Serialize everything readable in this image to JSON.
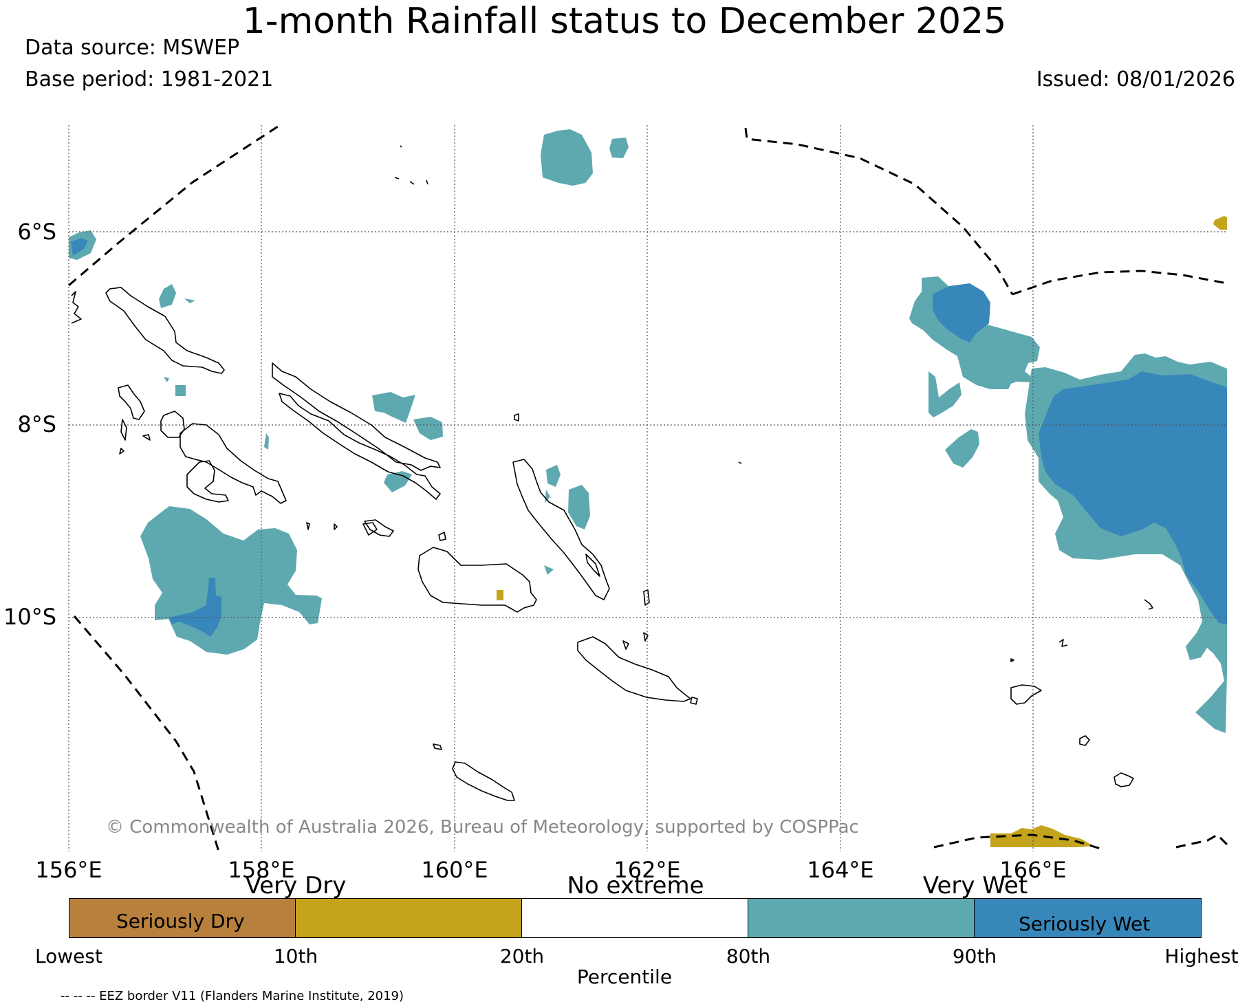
{
  "title": "1-month Rainfall status to December 2025",
  "data_source": "Data source: MSWEP",
  "base_period": "Base period: 1981-2021",
  "issued": "Issued: 08/01/2026",
  "map": {
    "lat_labels": [
      "6°S",
      "8°S",
      "10°S"
    ],
    "lon_labels": [
      "156°E",
      "158°E",
      "160°E",
      "162°E",
      "164°E",
      "166°E"
    ],
    "copyright": "© Commonwealth of Australia 2026, Bureau of Meteorology, supported by COSPPac",
    "colors": {
      "very_dry": "#c4a41d",
      "very_wet": "#5ea9b0",
      "seriously_wet": "#3787ba",
      "coastline": "#000000",
      "grid": "#555555"
    }
  },
  "colorbar": {
    "segments": [
      {
        "name": "Seriously Dry",
        "color": "#b7803d",
        "inner_label": "Seriously Dry"
      },
      {
        "name": "Very Dry",
        "color": "#c4a41d",
        "inner_label": ""
      },
      {
        "name": "No extreme",
        "color": "#ffffff",
        "inner_label": ""
      },
      {
        "name": "Very Wet",
        "color": "#5ea9b0",
        "inner_label": ""
      },
      {
        "name": "Seriously Wet",
        "color": "#3787ba",
        "inner_label": "Seriously Wet"
      }
    ],
    "top_labels": [
      "Very Dry",
      "No extreme",
      "Very Wet"
    ],
    "ticks": [
      "Lowest",
      "10th",
      "20th",
      "80th",
      "90th",
      "Highest"
    ],
    "xlabel": "Percentile"
  },
  "eez_note": "-- -- -- EEZ border V11 (Flanders Marine Institute, 2019)"
}
